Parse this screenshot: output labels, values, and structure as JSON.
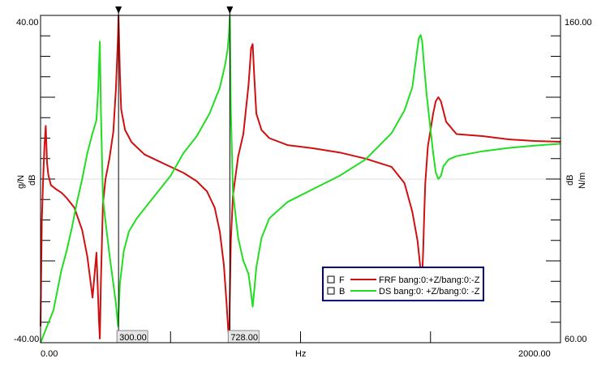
{
  "chart_data": {
    "type": "line",
    "title": "",
    "xlabel": "Hz",
    "ylabel_left": "dB",
    "yunit_left": "g/N",
    "ylabel_right": "dB",
    "yunit_right": "N/m",
    "xlim": [
      0,
      2000
    ],
    "ylim_left": [
      -40,
      40
    ],
    "ylim_right": [
      60,
      160
    ],
    "x_tick_labels": [
      "0.00",
      "Hz",
      "2000.00"
    ],
    "y_left_tick_labels": [
      "40.00",
      "-40.00"
    ],
    "y_right_tick_labels": [
      "160.00",
      "60.00"
    ],
    "grid": false,
    "legend_position": "bottom-right",
    "cursors": [
      {
        "x": 300,
        "label": "300.00"
      },
      {
        "x": 728,
        "label": "728.00"
      }
    ],
    "series": [
      {
        "name": "FRF bang:0:+Z/bang:0:-Z",
        "legend_key": "F",
        "axis": "left",
        "color": "#d01010",
        "x": [
          0,
          5,
          10,
          15,
          20,
          25,
          30,
          40,
          60,
          80,
          100,
          130,
          160,
          180,
          200,
          215,
          225,
          228,
          232,
          240,
          250,
          265,
          280,
          290,
          298,
          300,
          305,
          310,
          325,
          350,
          400,
          450,
          500,
          550,
          600,
          640,
          670,
          690,
          705,
          715,
          722,
          726,
          728,
          732,
          740,
          760,
          780,
          800,
          810,
          816,
          822,
          830,
          850,
          880,
          950,
          1050,
          1150,
          1250,
          1350,
          1400,
          1430,
          1450,
          1460,
          1468,
          1472,
          1476,
          1480,
          1490,
          1500,
          1510,
          1520,
          1530,
          1540,
          1560,
          1600,
          1700,
          1800,
          1900,
          2000
        ],
        "y": [
          -36,
          -10,
          0,
          8,
          13,
          4,
          1,
          -1.5,
          -2.5,
          -3.3,
          -4.6,
          -7,
          -12.5,
          -19,
          -29,
          -18,
          -35,
          -39,
          -25,
          -6,
          0,
          5,
          11.5,
          22,
          35,
          40,
          26,
          17,
          12,
          9,
          6,
          4.5,
          3,
          1.5,
          -0.5,
          -3,
          -7,
          -13,
          -21,
          -30,
          -37,
          -38.5,
          -29,
          -15,
          -4,
          5.5,
          11,
          23,
          32,
          33,
          25,
          16,
          12,
          10,
          8.3,
          7.5,
          6.5,
          5,
          3,
          -1,
          -8,
          -15,
          -21,
          -24,
          -17,
          -8,
          -1,
          8,
          12,
          16,
          19,
          20,
          19,
          14,
          11,
          10.5,
          9.7,
          9.3,
          9.1
        ]
      },
      {
        "name": "DS bang:0: +Z/bang:0: -Z",
        "legend_key": "B",
        "axis": "right",
        "color": "#22dd22",
        "x": [
          0,
          5,
          10,
          20,
          30,
          40,
          50,
          60,
          80,
          100,
          120,
          140,
          160,
          180,
          200,
          215,
          222,
          225,
          228,
          232,
          240,
          250,
          265,
          280,
          290,
          298,
          305,
          320,
          340,
          370,
          400,
          450,
          500,
          550,
          600,
          650,
          690,
          710,
          720,
          725,
          728,
          732,
          740,
          760,
          780,
          800,
          810,
          816,
          822,
          830,
          850,
          880,
          950,
          1050,
          1150,
          1250,
          1350,
          1400,
          1430,
          1445,
          1455,
          1462,
          1468,
          1475,
          1485,
          1500,
          1510,
          1520,
          1530,
          1540,
          1550,
          1570,
          1600,
          1700,
          1800,
          1900,
          2000
        ],
        "y": [
          60,
          61,
          62,
          64,
          66,
          68,
          70,
          74,
          82,
          88,
          95,
          103,
          110,
          118,
          124,
          128,
          138,
          145,
          152,
          131,
          104,
          97,
          87,
          78,
          72,
          65,
          78,
          88,
          94,
          98,
          101,
          106,
          111,
          118,
          123,
          130,
          138,
          145,
          150,
          155,
          160,
          131,
          106,
          92,
          85,
          81,
          75,
          71,
          76,
          83,
          92,
          98,
          103,
          107,
          111,
          116,
          124,
          131,
          138,
          147,
          153,
          154,
          152,
          145,
          136,
          125,
          118,
          112,
          110,
          111,
          114,
          116,
          117,
          118.5,
          119.5,
          120.2,
          120.8
        ]
      }
    ]
  }
}
